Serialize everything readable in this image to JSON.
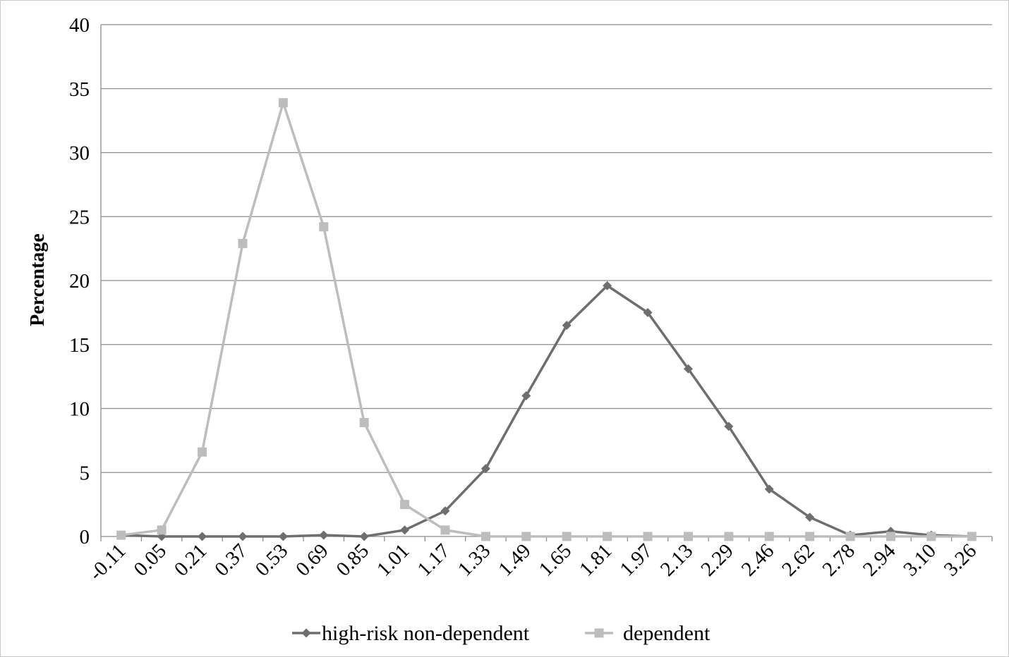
{
  "chart_data": {
    "type": "line",
    "title": "",
    "xlabel": "",
    "ylabel": "Percentage",
    "ylim": [
      0,
      40
    ],
    "yticks": [
      "0",
      "5",
      "10",
      "15",
      "20",
      "25",
      "30",
      "35",
      "40"
    ],
    "categories": [
      "-0.11",
      "0.05",
      "0.21",
      "0.37",
      "0.53",
      "0.69",
      "0.85",
      "1.01",
      "1.17",
      "1.33",
      "1.49",
      "1.65",
      "1.81",
      "1.97",
      "2.13",
      "2.29",
      "2.46",
      "2.62",
      "2.78",
      "2.94",
      "3.10",
      "3.26"
    ],
    "grid": true,
    "legend_position": "bottom",
    "series": [
      {
        "name": "high-risk non-dependent",
        "color": "#6e6e6e",
        "marker": "diamond",
        "values": [
          0.1,
          0,
          0,
          0,
          0,
          0.1,
          0,
          0.5,
          2.0,
          5.3,
          11.0,
          16.5,
          19.6,
          17.5,
          13.1,
          8.6,
          3.7,
          1.5,
          0.1,
          0.4,
          0.1,
          0
        ]
      },
      {
        "name": "dependent",
        "color": "#bdbdbd",
        "marker": "square",
        "values": [
          0.1,
          0.5,
          6.6,
          22.9,
          33.9,
          24.2,
          8.9,
          2.5,
          0.5,
          0,
          0,
          0,
          0,
          0,
          0,
          0,
          0,
          0,
          0,
          0,
          0,
          0
        ]
      }
    ]
  }
}
